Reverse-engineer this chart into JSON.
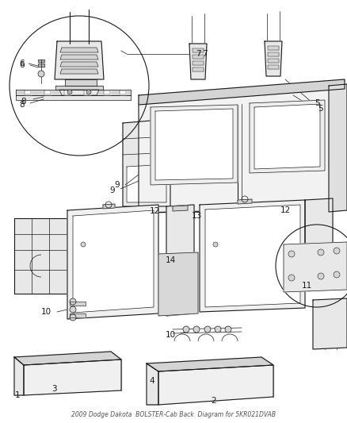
{
  "title": "2009 Dodge Dakota",
  "subtitle": "BOLSTER-Cab Back",
  "part_number": "5KR021DVAB",
  "background_color": "#ffffff",
  "line_color": "#1a1a1a",
  "fig_width": 4.38,
  "fig_height": 5.33,
  "text_color": "#1a1a1a",
  "label_fontsize": 7.5,
  "lw_thin": 0.5,
  "lw_med": 0.8,
  "lw_thick": 1.1,
  "gray_light": "#e8e8e8",
  "gray_mid": "#d4d4d4",
  "gray_dark": "#b0b0b0",
  "white": "#ffffff"
}
